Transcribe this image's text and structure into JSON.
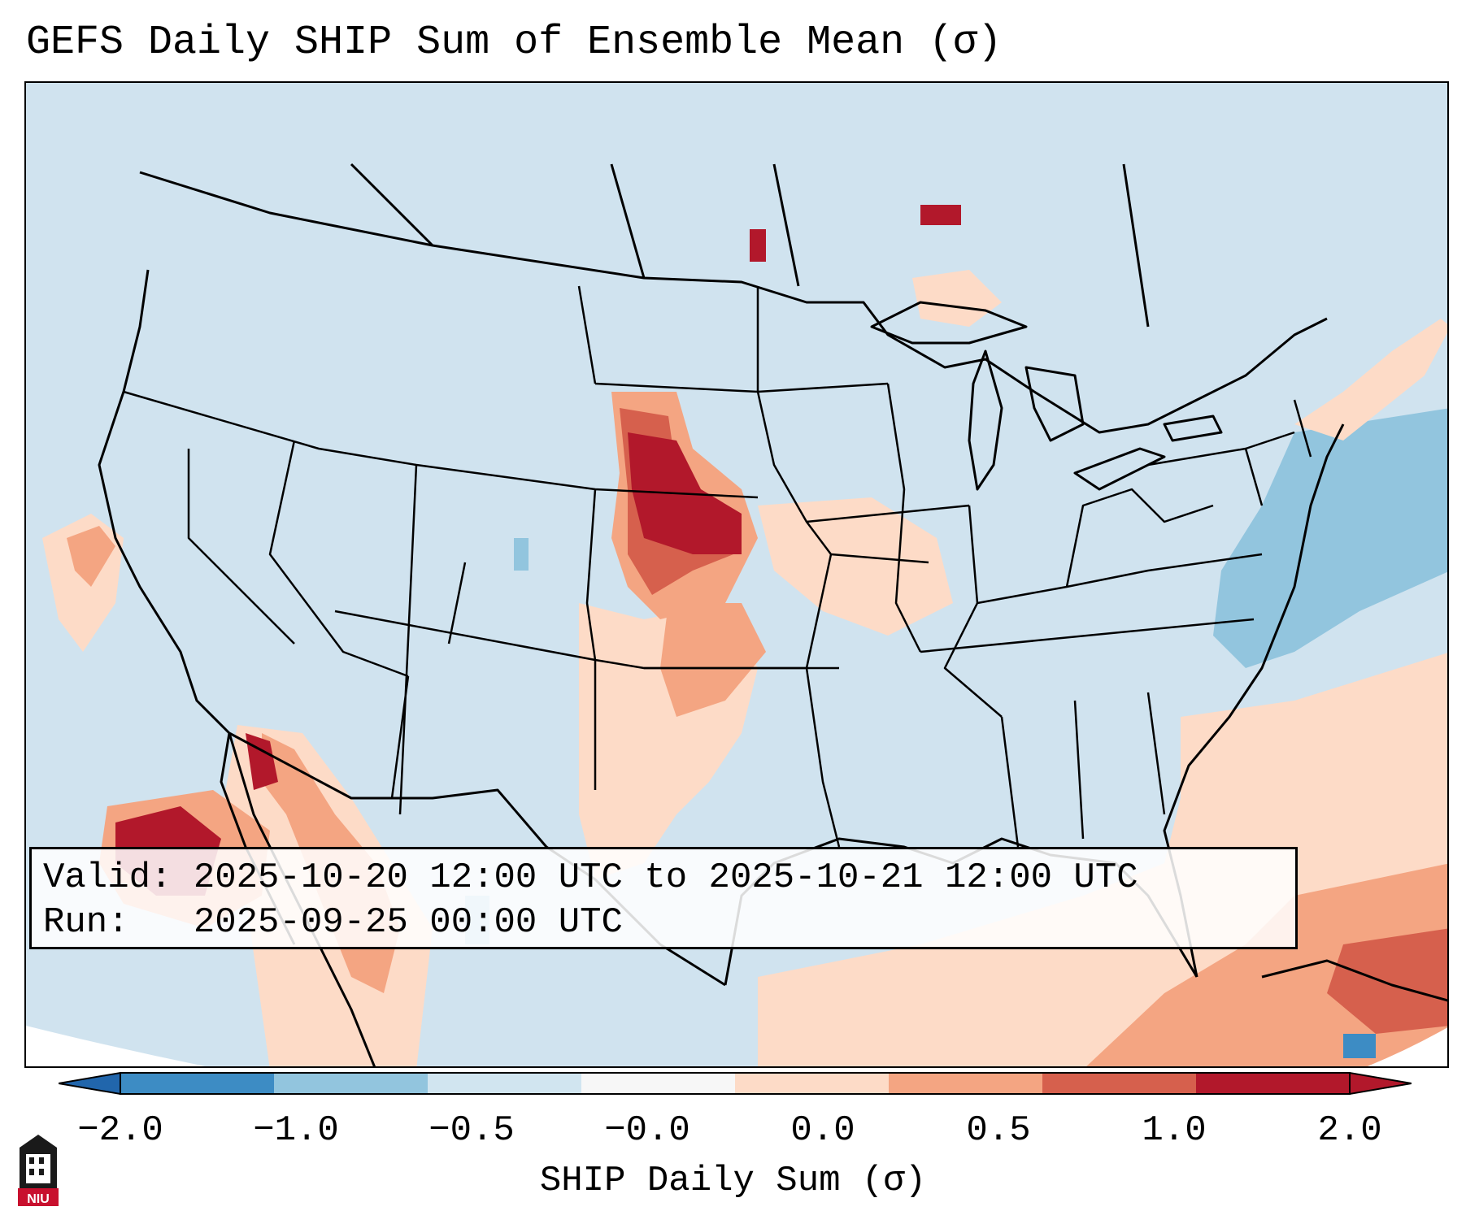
{
  "title": "GEFS Daily SHIP Sum of Ensemble Mean (σ)",
  "info": {
    "valid_label": "Valid:",
    "valid_value": "2025-10-20 12:00 UTC to 2025-10-21 12:00 UTC",
    "run_label": "Run:",
    "run_value": "2025-09-25 00:00 UTC"
  },
  "colorbar": {
    "label": "SHIP Daily Sum (σ)",
    "ticks": [
      "−2.0",
      "−1.0",
      "−0.5",
      "−0.0",
      "0.0",
      "0.5",
      "1.0",
      "2.0"
    ],
    "colors": [
      "#3d8cc4",
      "#92c5de",
      "#d1e5f0",
      "#f7f7f7",
      "#fddbc7",
      "#f4a582",
      "#d6604d",
      "#b2182b"
    ],
    "extend_low_color": "#2166ac",
    "extend_high_color": "#b2182b"
  },
  "map": {
    "background_color": "#d0e3ef",
    "region": "Contiguous United States, Mexico, Caribbean"
  },
  "logo": {
    "text": "NIU",
    "color": "#c8102e"
  }
}
